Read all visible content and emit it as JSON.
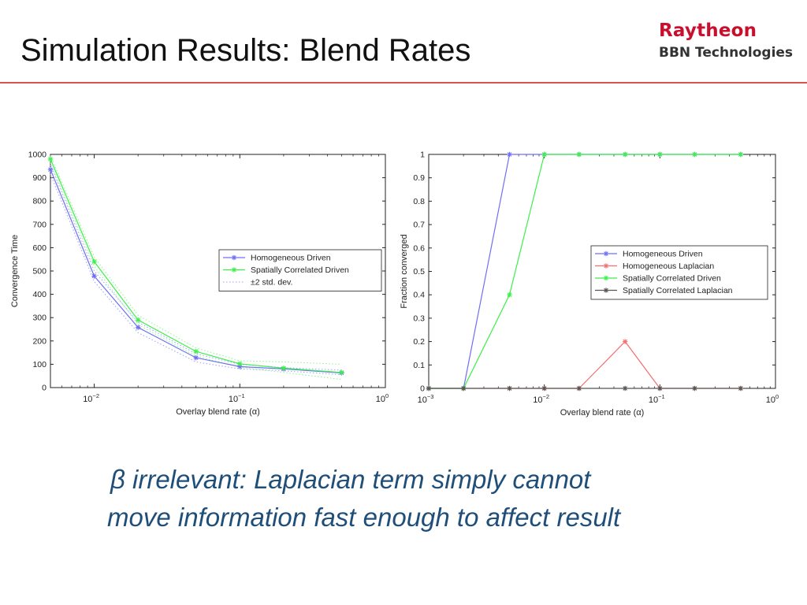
{
  "slide": {
    "title": "Simulation Results: Blend Rates",
    "logo": {
      "line1": "Raytheon",
      "line2": "BBN Technologies",
      "line1_color": "#c8102e"
    },
    "rule_color": "#d9534f",
    "caption": {
      "line1": "β irrelevant: Laplacian term simply cannot",
      "line2": "move information fast enough to affect result",
      "color": "#1f4e79"
    }
  },
  "chart_data": [
    {
      "type": "line",
      "xlabel": "Overlay blend rate (α)",
      "ylabel": "Convergence Time",
      "x_scale": "log",
      "xlim": [
        0.005,
        1
      ],
      "ylim": [
        0,
        1000
      ],
      "x_ticks": [
        0.01,
        0.1,
        1
      ],
      "x_tick_labels": [
        {
          "base": "10",
          "exp": "−2"
        },
        {
          "base": "10",
          "exp": "−1"
        },
        {
          "base": "10",
          "exp": "0"
        }
      ],
      "y_ticks": [
        0,
        100,
        200,
        300,
        400,
        500,
        600,
        700,
        800,
        900,
        1000
      ],
      "y_tick_labels": [
        "0",
        "100",
        "200",
        "300",
        "400",
        "500",
        "600",
        "700",
        "800",
        "900",
        "1000"
      ],
      "grid": false,
      "legend_position": "right",
      "x": [
        0.005,
        0.01,
        0.02,
        0.05,
        0.1,
        0.2,
        0.5
      ],
      "series": [
        {
          "name": "Homogeneous Driven",
          "color": "#6f6ff5",
          "marker": "star",
          "values": [
            935,
            478,
            258,
            128,
            90,
            80,
            63
          ]
        },
        {
          "name": "Spatially Correlated Driven",
          "color": "#3cf04a",
          "marker": "star",
          "values": [
            980,
            540,
            290,
            155,
            102,
            83,
            65
          ]
        }
      ],
      "bands": [
        {
          "name": "±2 std. dev.",
          "color": "#9aa0ff",
          "style": "dotted",
          "upper": [
            955,
            500,
            280,
            145,
            100,
            85,
            75
          ],
          "lower": [
            915,
            455,
            235,
            110,
            80,
            72,
            55
          ]
        },
        {
          "color": "#8af58e",
          "style": "dotted",
          "upper": [
            995,
            560,
            310,
            170,
            115,
            110,
            100
          ],
          "lower": [
            965,
            520,
            270,
            135,
            88,
            65,
            35
          ]
        }
      ]
    },
    {
      "type": "line",
      "xlabel": "Overlay blend rate (α)",
      "ylabel": "Fraction converged",
      "x_scale": "log",
      "xlim": [
        0.001,
        1
      ],
      "ylim": [
        0,
        1
      ],
      "x_ticks": [
        0.001,
        0.01,
        0.1,
        1
      ],
      "x_tick_labels": [
        {
          "base": "10",
          "exp": "−3"
        },
        {
          "base": "10",
          "exp": "−2"
        },
        {
          "base": "10",
          "exp": "−1"
        },
        {
          "base": "10",
          "exp": "0"
        }
      ],
      "y_ticks": [
        0,
        0.1,
        0.2,
        0.3,
        0.4,
        0.5,
        0.6,
        0.7,
        0.8,
        0.9,
        1
      ],
      "y_tick_labels": [
        "0",
        "0.1",
        "0.2",
        "0.3",
        "0.4",
        "0.5",
        "0.6",
        "0.7",
        "0.8",
        "0.9",
        "1"
      ],
      "grid": false,
      "legend_position": "right",
      "x": [
        0.001,
        0.002,
        0.005,
        0.01,
        0.02,
        0.05,
        0.1,
        0.2,
        0.5
      ],
      "series": [
        {
          "name": "Homogeneous Driven",
          "color": "#6f6ff5",
          "marker": "star",
          "values": [
            0,
            0,
            1,
            1,
            1,
            1,
            1,
            1,
            1
          ]
        },
        {
          "name": "Homogeneous Laplacian",
          "color": "#f56f6f",
          "marker": "star",
          "values": [
            0,
            0,
            0,
            0,
            0,
            0.2,
            0,
            0,
            0
          ]
        },
        {
          "name": "Spatially Correlated Driven",
          "color": "#3cf04a",
          "marker": "star",
          "values": [
            0,
            0,
            0.4,
            1,
            1,
            1,
            1,
            1,
            1
          ]
        },
        {
          "name": "Spatially Correlated Laplacian",
          "color": "#555555",
          "marker": "star",
          "values": [
            0,
            0,
            0,
            0,
            0,
            0,
            0,
            0,
            0
          ]
        }
      ]
    }
  ]
}
